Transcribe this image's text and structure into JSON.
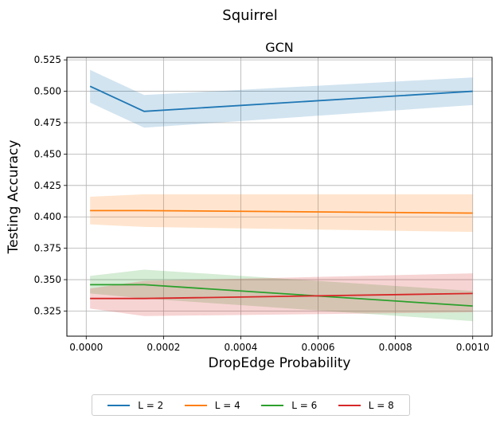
{
  "suptitle": "Squirrel",
  "chart_data": {
    "type": "line",
    "title": "GCN",
    "xlabel": "DropEdge Probability",
    "ylabel": "Testing Accuracy",
    "xlim": [
      -5e-05,
      0.00105
    ],
    "ylim": [
      0.305,
      0.527
    ],
    "xticks": [
      0.0,
      0.0002,
      0.0004,
      0.0006,
      0.0008,
      0.001
    ],
    "xtick_labels": [
      "0.0000",
      "0.0002",
      "0.0004",
      "0.0006",
      "0.0008",
      "0.0010"
    ],
    "yticks": [
      0.325,
      0.35,
      0.375,
      0.4,
      0.425,
      0.45,
      0.475,
      0.5,
      0.525
    ],
    "ytick_labels": [
      "0.325",
      "0.350",
      "0.375",
      "0.400",
      "0.425",
      "0.450",
      "0.475",
      "0.500",
      "0.525"
    ],
    "grid": true,
    "legend_position": "below",
    "x": [
      1e-05,
      0.00015,
      0.001
    ],
    "series": [
      {
        "name": "L = 2",
        "color": "#1f77b4",
        "values": [
          0.504,
          0.484,
          0.5
        ],
        "lower": [
          0.491,
          0.471,
          0.489
        ],
        "upper": [
          0.517,
          0.497,
          0.511
        ]
      },
      {
        "name": "L = 4",
        "color": "#ff7f0e",
        "values": [
          0.405,
          0.405,
          0.403
        ],
        "lower": [
          0.394,
          0.392,
          0.388
        ],
        "upper": [
          0.416,
          0.418,
          0.418
        ]
      },
      {
        "name": "L = 6",
        "color": "#2ca02c",
        "values": [
          0.346,
          0.346,
          0.329
        ],
        "lower": [
          0.339,
          0.335,
          0.317
        ],
        "upper": [
          0.353,
          0.358,
          0.341
        ]
      },
      {
        "name": "L = 8",
        "color": "#d62728",
        "values": [
          0.335,
          0.335,
          0.339
        ],
        "lower": [
          0.327,
          0.321,
          0.324
        ],
        "upper": [
          0.343,
          0.349,
          0.355
        ]
      }
    ]
  }
}
